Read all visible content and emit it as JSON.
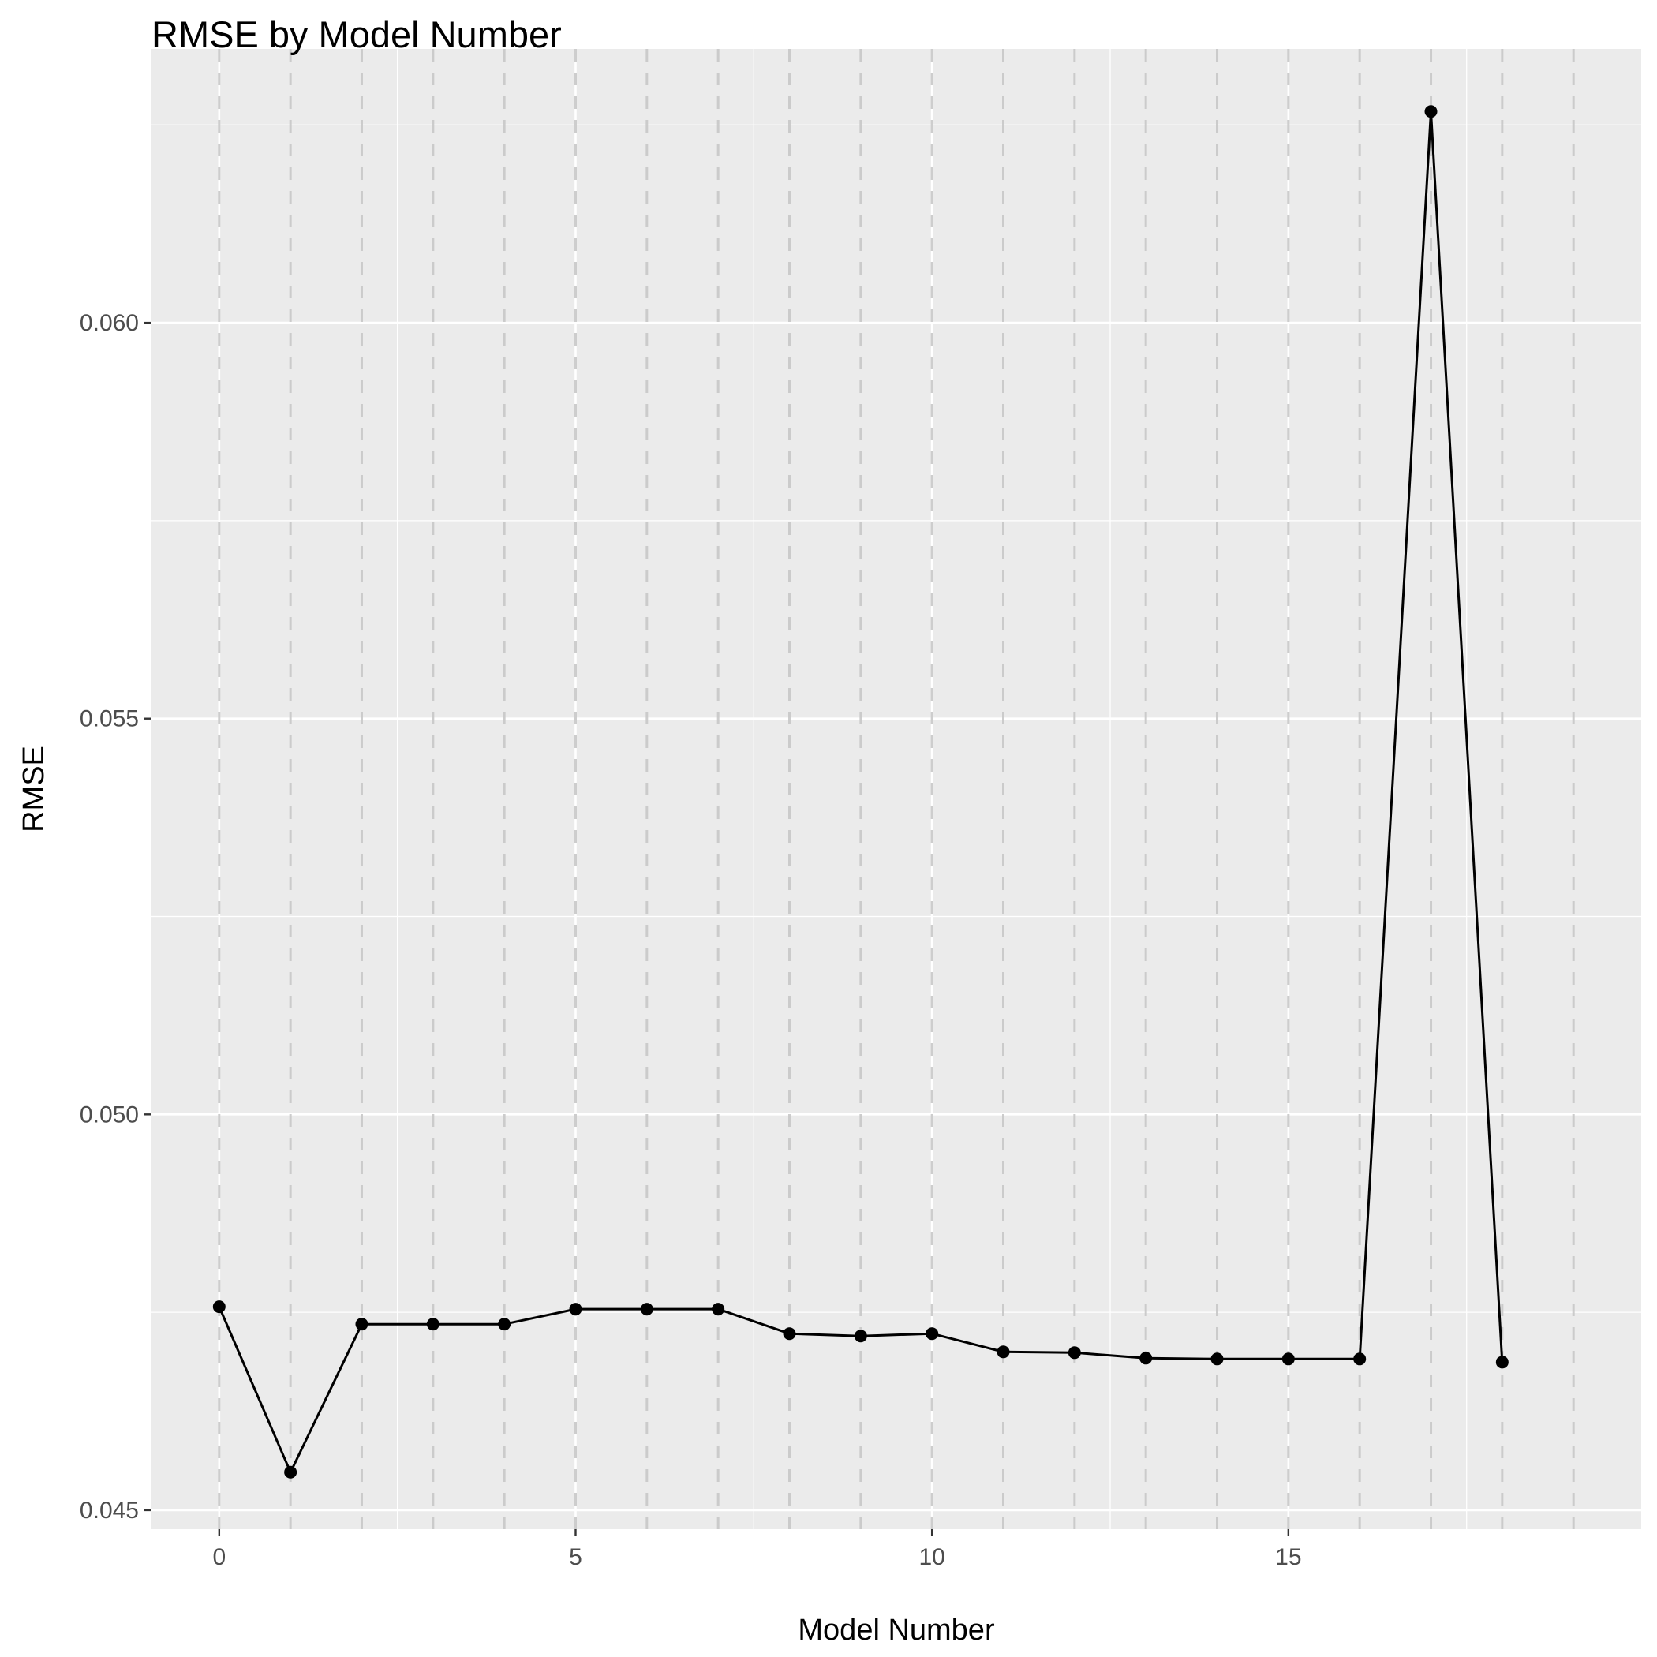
{
  "chart_data": {
    "type": "line",
    "title": "RMSE by Model Number",
    "xlabel": "Model Number",
    "ylabel": "RMSE",
    "x": [
      0,
      1,
      2,
      3,
      4,
      5,
      6,
      7,
      8,
      9,
      10,
      11,
      12,
      13,
      14,
      15,
      16,
      17,
      18
    ],
    "series": [
      {
        "values": [
          0.04757,
          0.04548,
          0.04735,
          0.04735,
          0.04735,
          0.04754,
          0.04754,
          0.04754,
          0.04723,
          0.0472,
          0.04723,
          0.047,
          0.04699,
          0.04692,
          0.04691,
          0.04691,
          0.04691,
          0.06267,
          0.04687
        ],
        "color": "#000000"
      }
    ],
    "xlim": [
      -0.95,
      19.95
    ],
    "ylim": [
      0.04476,
      0.06346
    ],
    "x_ticks": [
      0,
      5,
      10,
      15
    ],
    "x_tick_labels": [
      "0",
      "5",
      "10",
      "15"
    ],
    "y_ticks": [
      0.045,
      0.05,
      0.055,
      0.06
    ],
    "y_tick_labels": [
      "0.045",
      "0.050",
      "0.055",
      "0.060"
    ],
    "x_minor_ticks": [
      2.5,
      7.5,
      12.5,
      17.5
    ],
    "y_minor_ticks": [
      0.0475,
      0.0525,
      0.0575,
      0.0625
    ],
    "vertical_reference_lines": [
      0,
      1,
      2,
      3,
      4,
      5,
      6,
      7,
      8,
      9,
      10,
      11,
      12,
      13,
      14,
      15,
      16,
      17,
      18,
      19
    ],
    "reference_line_style": "dashed",
    "reference_line_color": "#c8c8c8",
    "panel_background": "#ebebeb",
    "grid_color": "#ffffff",
    "grid": true,
    "legend": "none"
  }
}
